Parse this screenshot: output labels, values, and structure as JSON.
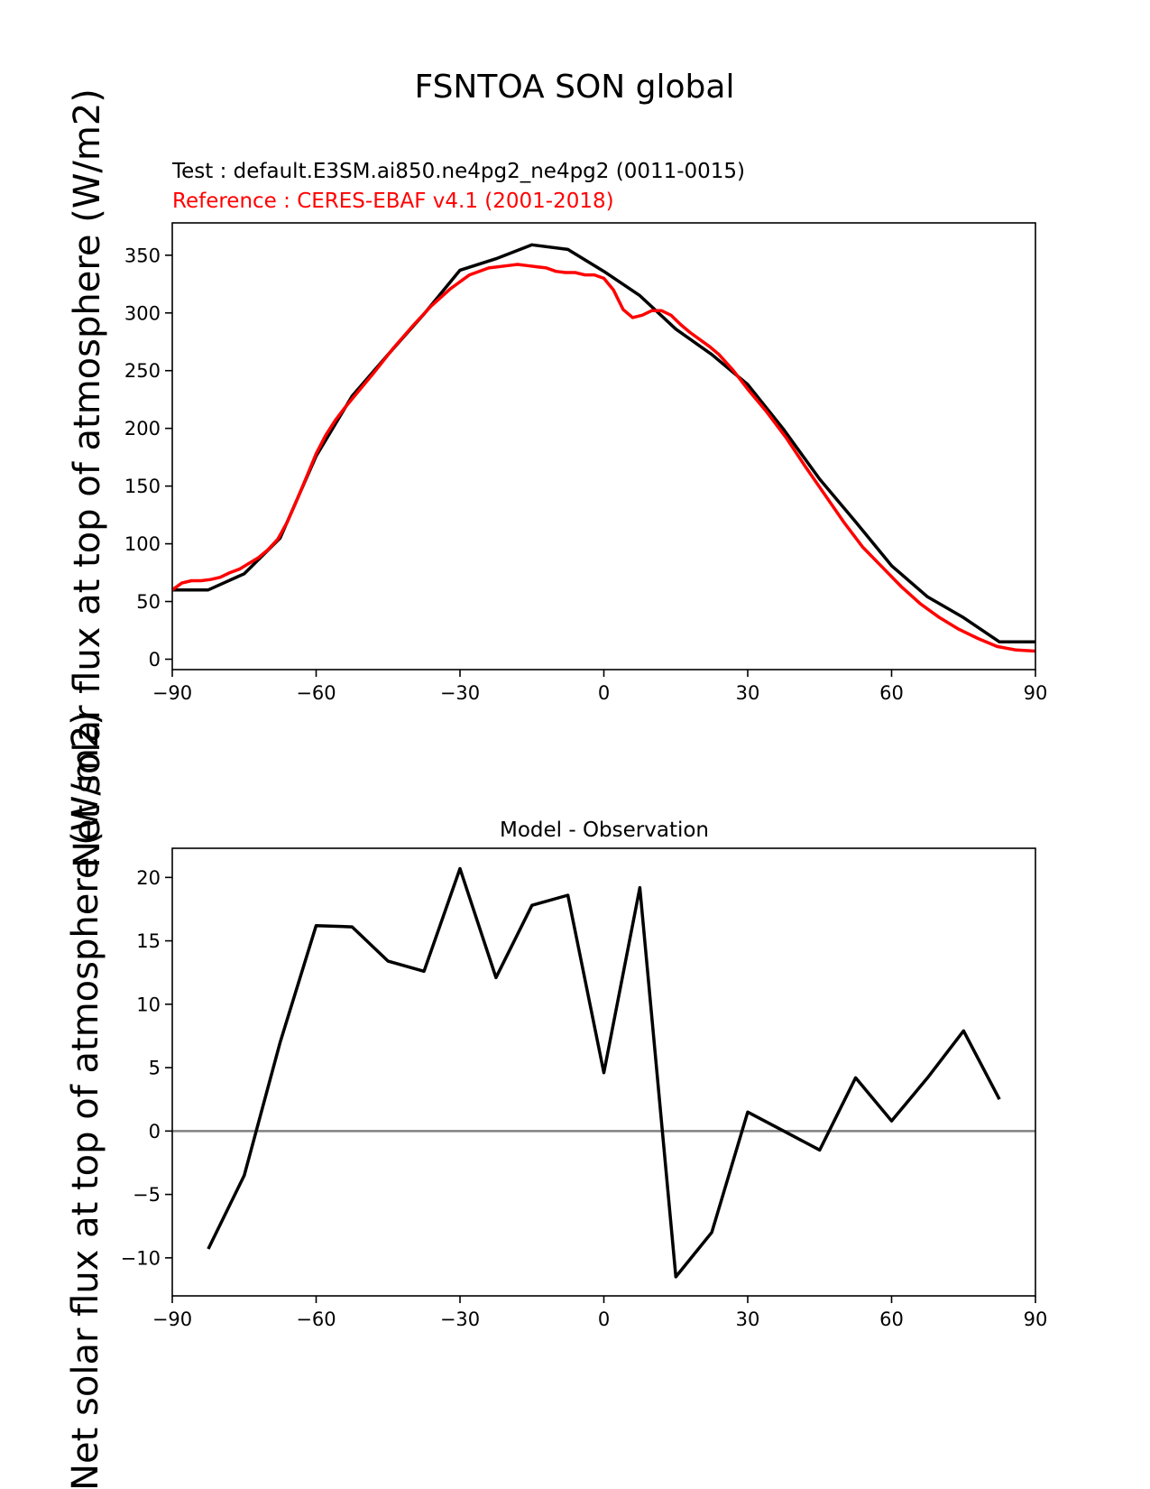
{
  "figure": {
    "title": "FSNTOA SON global",
    "ylabel": "Net solar flux at top of atmosphere (W/m2)"
  },
  "chart_data": [
    {
      "type": "line",
      "test_label": "Test : default.E3SM.ai850.ne4pg2_ne4pg2 (0011-0015)",
      "reference_label": "Reference : CERES-EBAF v4.1 (2001-2018)",
      "xlim": [
        -90,
        90
      ],
      "ylim": [
        -9,
        378
      ],
      "xticks": [
        -90,
        -60,
        -30,
        0,
        30,
        60,
        90
      ],
      "yticks": [
        0,
        50,
        100,
        150,
        200,
        250,
        300,
        350
      ],
      "series": [
        {
          "name": "Test : default.E3SM.ai850.ne4pg2_ne4pg2 (0011-0015)",
          "color": "#000000",
          "x": [
            -90,
            -82.5,
            -75,
            -67.5,
            -60,
            -52.5,
            -45,
            -37.5,
            -30,
            -22.5,
            -15,
            -7.5,
            0,
            7.5,
            15,
            22.5,
            30,
            37.5,
            45,
            52.5,
            60,
            67.5,
            75,
            82.5,
            90
          ],
          "y": [
            60,
            60,
            74,
            105,
            176,
            228,
            264,
            299,
            337,
            347,
            359,
            355,
            336,
            315,
            286,
            264,
            238,
            199,
            156,
            119,
            81,
            54,
            36,
            15,
            15
          ]
        },
        {
          "name": "Reference : CERES-EBAF v4.1 (2001-2018)",
          "color": "#ff0000",
          "x": [
            -90,
            -88,
            -86,
            -84,
            -82,
            -80,
            -78,
            -76,
            -74,
            -72,
            -70,
            -68,
            -66,
            -64,
            -62,
            -60,
            -58,
            -56,
            -54,
            -52,
            -48,
            -44,
            -40,
            -36,
            -32,
            -28,
            -24,
            -20,
            -18,
            -16,
            -14,
            -12,
            -10,
            -8,
            -6,
            -4,
            -2,
            0,
            2,
            4,
            6,
            8,
            10,
            12,
            14,
            16,
            18,
            20,
            22,
            24,
            27,
            30,
            34,
            38,
            42,
            46,
            50,
            54,
            58,
            62,
            66,
            70,
            74,
            78,
            82,
            86,
            90
          ],
          "y": [
            60,
            66,
            68,
            68,
            69,
            71,
            75,
            78,
            83,
            88,
            95,
            104,
            119,
            138,
            158,
            178,
            194,
            207,
            218,
            228,
            248,
            269,
            288,
            306,
            321,
            333,
            339,
            341,
            342,
            341,
            340,
            339,
            336,
            335,
            335,
            333,
            333,
            330,
            320,
            303,
            296,
            298,
            302,
            302,
            298,
            290,
            283,
            277,
            271,
            264,
            250,
            234,
            214,
            192,
            167,
            143,
            119,
            97,
            80,
            63,
            48,
            36,
            26,
            18,
            11,
            8,
            7
          ]
        }
      ]
    },
    {
      "type": "line",
      "title": "Model - Observation",
      "xlim": [
        -90,
        90
      ],
      "ylim": [
        -13,
        22.3
      ],
      "xticks": [
        -90,
        -60,
        -30,
        0,
        30,
        60,
        90
      ],
      "yticks": [
        -10,
        -5,
        0,
        5,
        10,
        15,
        20
      ],
      "zero_line_color": "#808080",
      "series": [
        {
          "name": "",
          "color": "#000000",
          "x": [
            -82.5,
            -75,
            -67.5,
            -60,
            -52.5,
            -45,
            -37.5,
            -30,
            -22.5,
            -15,
            -7.5,
            0,
            7.5,
            15,
            22.5,
            30,
            37.5,
            45,
            52.5,
            60,
            67.5,
            75,
            82.5
          ],
          "y": [
            -9.3,
            -3.5,
            7.0,
            16.2,
            16.1,
            13.4,
            12.6,
            20.7,
            12.1,
            17.8,
            18.6,
            4.6,
            19.2,
            -11.5,
            -8.0,
            1.5,
            0.0,
            -1.5,
            4.2,
            0.8,
            4.2,
            7.9,
            2.5
          ]
        }
      ]
    }
  ]
}
